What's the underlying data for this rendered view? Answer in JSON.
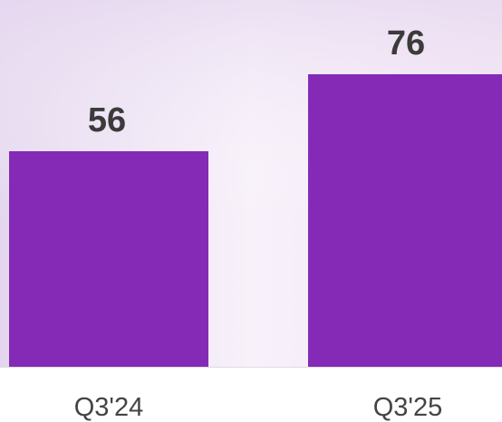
{
  "chart_data": {
    "type": "bar",
    "categories": [
      "Q3'24",
      "Q3'25"
    ],
    "values": [
      56,
      76
    ],
    "color": "#842ab6"
  }
}
